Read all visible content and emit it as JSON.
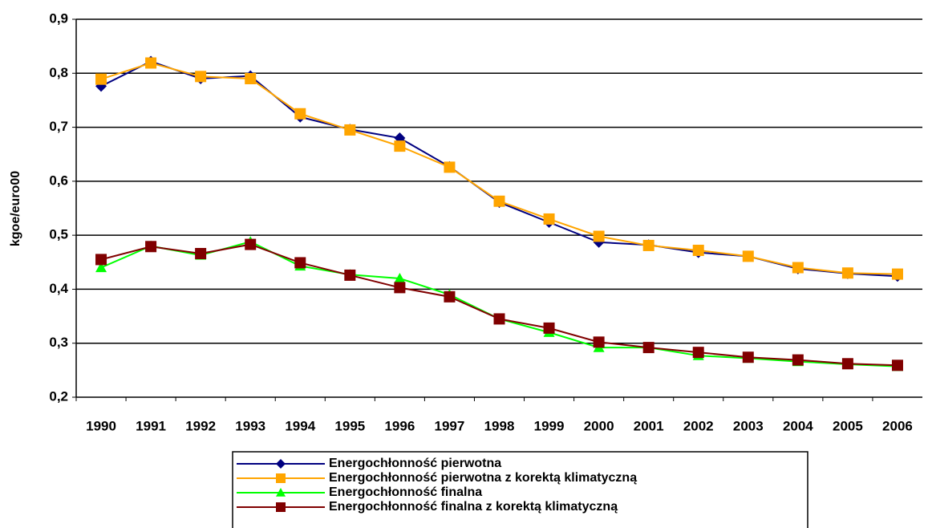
{
  "chart_data": {
    "type": "line",
    "y_label": "kgoe/euro00",
    "categories": [
      "1990",
      "1991",
      "1992",
      "1993",
      "1994",
      "1995",
      "1996",
      "1997",
      "1998",
      "1999",
      "2000",
      "2001",
      "2002",
      "2003",
      "2004",
      "2005",
      "2006"
    ],
    "series": [
      {
        "name": "Energochłonność pierwotna",
        "color": "#000080",
        "marker": "diamond",
        "values": [
          0.776,
          0.822,
          0.79,
          0.795,
          0.719,
          0.696,
          0.68,
          0.627,
          0.561,
          0.524,
          0.487,
          0.482,
          0.468,
          0.461,
          0.438,
          0.429,
          0.424
        ]
      },
      {
        "name": "Energochłonność pierwotna z korektą klimatyczną",
        "color": "#ffa500",
        "marker": "square",
        "values": [
          0.789,
          0.819,
          0.794,
          0.79,
          0.725,
          0.695,
          0.665,
          0.626,
          0.563,
          0.53,
          0.498,
          0.481,
          0.472,
          0.461,
          0.44,
          0.43,
          0.428
        ]
      },
      {
        "name": "Energochłonność finalna",
        "color": "#00ff00",
        "marker": "triangle",
        "values": [
          0.44,
          0.48,
          0.463,
          0.488,
          0.443,
          0.427,
          0.42,
          0.39,
          0.345,
          0.32,
          0.292,
          0.292,
          0.277,
          0.272,
          0.266,
          0.261,
          0.257
        ]
      },
      {
        "name": "Energochłonność finalna z korektą klimatyczną",
        "color": "#800000",
        "marker": "square",
        "values": [
          0.455,
          0.479,
          0.466,
          0.483,
          0.449,
          0.426,
          0.403,
          0.386,
          0.345,
          0.328,
          0.302,
          0.292,
          0.283,
          0.274,
          0.269,
          0.262,
          0.259
        ]
      }
    ],
    "ylim": [
      0.2,
      0.9
    ],
    "yticks": [
      {
        "value": 0.2,
        "label": "0,2"
      },
      {
        "value": 0.3,
        "label": "0,3"
      },
      {
        "value": 0.4,
        "label": "0,4"
      },
      {
        "value": 0.5,
        "label": "0,5"
      },
      {
        "value": 0.6,
        "label": "0,6"
      },
      {
        "value": 0.7,
        "label": "0,7"
      },
      {
        "value": 0.8,
        "label": "0,8"
      },
      {
        "value": 0.9,
        "label": "0,9"
      }
    ],
    "grid": true
  }
}
